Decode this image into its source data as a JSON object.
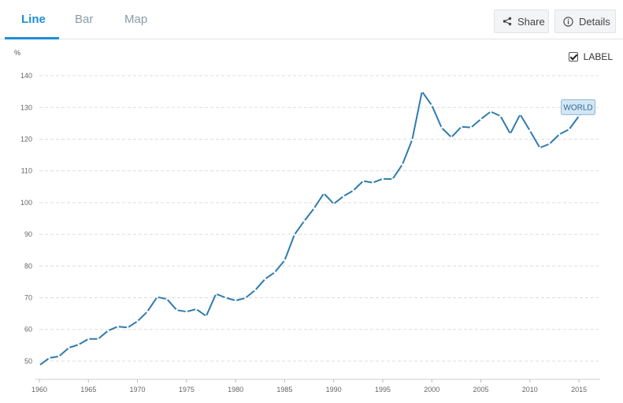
{
  "tabs": [
    {
      "label": "Line"
    },
    {
      "label": "Bar"
    },
    {
      "label": "Map"
    }
  ],
  "actions": {
    "share_label": "Share",
    "details_label": "Details"
  },
  "label_toggle": {
    "label": "LABEL",
    "checked": true
  },
  "colors": {
    "series": "#2f7bac",
    "accent": "#1f8fd6",
    "grid": "#dddddd",
    "label_bg": "#d3e6f4"
  },
  "chart_data": {
    "type": "line",
    "ylabel": "%",
    "ylim": [
      47,
      142
    ],
    "yticks": [
      50,
      60,
      70,
      80,
      90,
      100,
      110,
      120,
      130,
      140
    ],
    "xlim": [
      1960,
      2017
    ],
    "xticks": [
      1960,
      1965,
      1970,
      1975,
      1980,
      1985,
      1990,
      1995,
      2000,
      2005,
      2010,
      2015
    ],
    "grid": true,
    "series": [
      {
        "name": "WORLD",
        "x": [
          1960,
          1961,
          1962,
          1963,
          1964,
          1965,
          1966,
          1967,
          1968,
          1969,
          1970,
          1971,
          1972,
          1973,
          1974,
          1975,
          1976,
          1977,
          1978,
          1979,
          1980,
          1981,
          1982,
          1983,
          1984,
          1985,
          1986,
          1987,
          1988,
          1989,
          1990,
          1991,
          1992,
          1993,
          1994,
          1995,
          1996,
          1997,
          1998,
          1999,
          2000,
          2001,
          2002,
          2003,
          2004,
          2005,
          2006,
          2007,
          2008,
          2009,
          2010,
          2011,
          2012,
          2013,
          2014,
          2015,
          2016
        ],
        "values": [
          48.7,
          51,
          51.5,
          54.2,
          55.2,
          57,
          57,
          59.6,
          60.9,
          60.6,
          62.6,
          65.6,
          70.2,
          69.6,
          66.1,
          65.6,
          66.4,
          64.2,
          71.2,
          70,
          69.1,
          69.9,
          72.4,
          75.9,
          78,
          81.8,
          89.9,
          94.2,
          98.2,
          102.9,
          99.6,
          102,
          103.8,
          106.8,
          106.3,
          107.5,
          107.4,
          112,
          119.8,
          135,
          130.7,
          123.6,
          120.6,
          123.9,
          123.7,
          126.3,
          128.7,
          127.3,
          121.7,
          127.8,
          122.7,
          117.3,
          118.5,
          121.5,
          123.1,
          127.3,
          131.7
        ]
      }
    ]
  }
}
